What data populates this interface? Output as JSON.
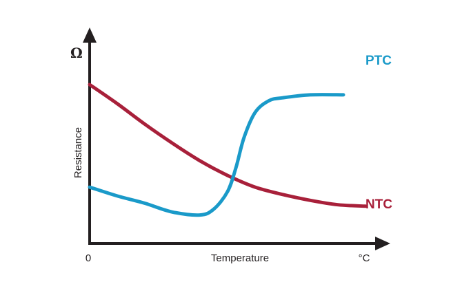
{
  "chart_data": {
    "type": "line",
    "title": "",
    "xlabel": "Temperature",
    "ylabel": "Resistance",
    "x_origin_label": "0",
    "x_unit": "°C",
    "y_unit": "Ω",
    "xlim": [
      0,
      10
    ],
    "ylim": [
      0,
      10
    ],
    "grid": false,
    "legend": "inline-right",
    "series": [
      {
        "name": "PTC",
        "color": "#1a9ac9",
        "x": [
          0,
          1,
          2,
          3,
          4,
          4.5,
          5,
          5.3,
          5.6,
          6,
          6.5,
          7,
          8,
          9.2
        ],
        "y": [
          3.0,
          2.4,
          1.9,
          1.3,
          1.1,
          1.5,
          2.7,
          4.3,
          6.4,
          8.1,
          8.9,
          9.1,
          9.3,
          9.3
        ]
      },
      {
        "name": "NTC",
        "color": "#a8203a",
        "x": [
          0,
          1,
          2,
          3,
          4,
          5,
          6,
          7,
          8,
          9,
          10
        ],
        "y": [
          10.0,
          8.7,
          7.3,
          6.0,
          4.8,
          3.8,
          3.0,
          2.5,
          2.1,
          1.8,
          1.7
        ]
      }
    ]
  }
}
